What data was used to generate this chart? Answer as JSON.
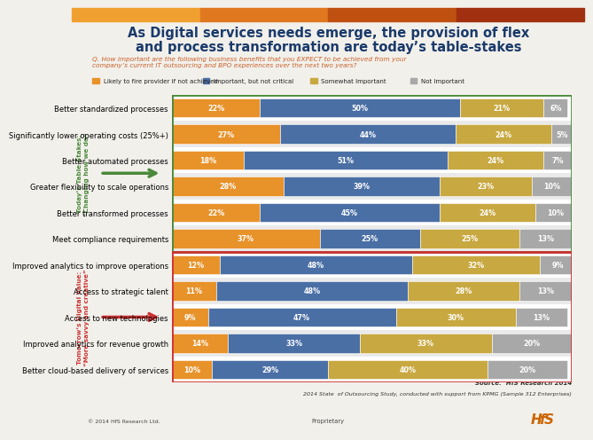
{
  "title_line1": "As Digital services needs emerge, the provision of flex",
  "title_line2": "and process transformation are today’s table-stakes",
  "subtitle": "Q. How important are the following business benefits that you EXPECT to be achieved from your\ncompany’s current IT outsourcing and BPO experiences over the next two years?",
  "legend": [
    "Likely to fire provider if not achieved",
    "Important, but not critical",
    "Somewhat Important",
    "Not Important"
  ],
  "colors": [
    "#E8922A",
    "#4A6FA5",
    "#C8A840",
    "#A8A8A8"
  ],
  "categories_today": [
    "Better standardized processes",
    "Significantly lower operating costs (25%+)",
    "Better automated processes",
    "Greater flexibility to scale operations",
    "Better transformed processes",
    "Meet compliance requirements"
  ],
  "categories_tomorrow": [
    "Improved analytics to improve operations",
    "Access to strategic talent",
    "Access to new technologies",
    "Improved analytics for revenue growth",
    "Better cloud-based delivery of services"
  ],
  "data_today": [
    [
      22,
      50,
      21,
      6
    ],
    [
      27,
      44,
      24,
      5
    ],
    [
      18,
      51,
      24,
      7
    ],
    [
      28,
      39,
      23,
      10
    ],
    [
      22,
      45,
      24,
      10
    ],
    [
      37,
      25,
      25,
      13
    ]
  ],
  "data_tomorrow": [
    [
      12,
      48,
      32,
      9
    ],
    [
      11,
      48,
      28,
      13
    ],
    [
      9,
      47,
      30,
      13
    ],
    [
      14,
      33,
      33,
      20
    ],
    [
      10,
      29,
      40,
      20
    ]
  ],
  "source_text1": "Source:  HfS Research 2014",
  "source_text2": "2014 State  of Outsourcing Study, conducted with support from KPMG (Sample 312 Enterprises)",
  "footer_left": "© 2014 HfS Research Ltd.",
  "footer_center": "Proprietary",
  "bg_color": "#F2F0EB",
  "title_color": "#1A3A6B",
  "subtitle_color": "#C8602A",
  "today_border": "#4A8A3A",
  "tomorrow_border": "#CC3333",
  "today_label_line1": "Today’s Table-Stakes:",
  "today_label_line2": "“Changing how we do”",
  "tomorrow_label_line1": "Tomorrow’s Digital Value:",
  "tomorrow_label_line2": "“More savvy and creative”",
  "grad_colors": [
    "#F0A030",
    "#E07820",
    "#C05010",
    "#A03010"
  ]
}
